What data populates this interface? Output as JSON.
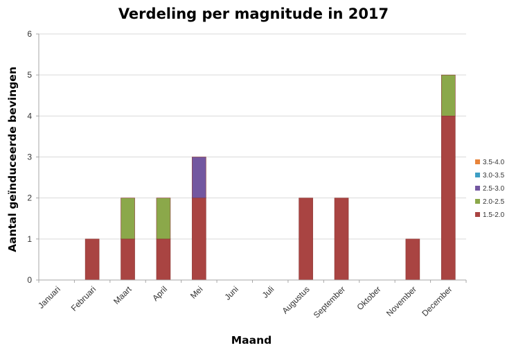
{
  "chart_data": {
    "type": "bar",
    "stacked": true,
    "title": "Verdeling per magnitude in 2017",
    "xlabel": "Maand",
    "ylabel": "Aantal geïnduceerde bevingen",
    "ylim": [
      0,
      6
    ],
    "yticks": [
      0,
      1,
      2,
      3,
      4,
      5,
      6
    ],
    "grid": true,
    "legend_position": "right",
    "categories": [
      "Januari",
      "Februari",
      "Maart",
      "April",
      "Mei",
      "Juni",
      "Juli",
      "Augustus",
      "September",
      "Oktober",
      "November",
      "December"
    ],
    "series": [
      {
        "name": "1.5-2.0",
        "color": "#a94442",
        "values": [
          0,
          1,
          1,
          1,
          2,
          0,
          0,
          2,
          2,
          0,
          1,
          4
        ]
      },
      {
        "name": "2.0-2.5",
        "color": "#8ba84a",
        "values": [
          0,
          0,
          1,
          1,
          0,
          0,
          0,
          0,
          0,
          0,
          0,
          1
        ]
      },
      {
        "name": "2.5-3.0",
        "color": "#7357a0",
        "values": [
          0,
          0,
          0,
          0,
          1,
          0,
          0,
          0,
          0,
          0,
          0,
          0
        ]
      },
      {
        "name": "3.0-3.5",
        "color": "#3e9ec4",
        "values": [
          0,
          0,
          0,
          0,
          0,
          0,
          0,
          0,
          0,
          0,
          0,
          0
        ]
      },
      {
        "name": "3.5-4.0",
        "color": "#e8843a",
        "values": [
          0,
          0,
          0,
          0,
          0,
          0,
          0,
          0,
          0,
          0,
          0,
          0
        ]
      }
    ]
  }
}
